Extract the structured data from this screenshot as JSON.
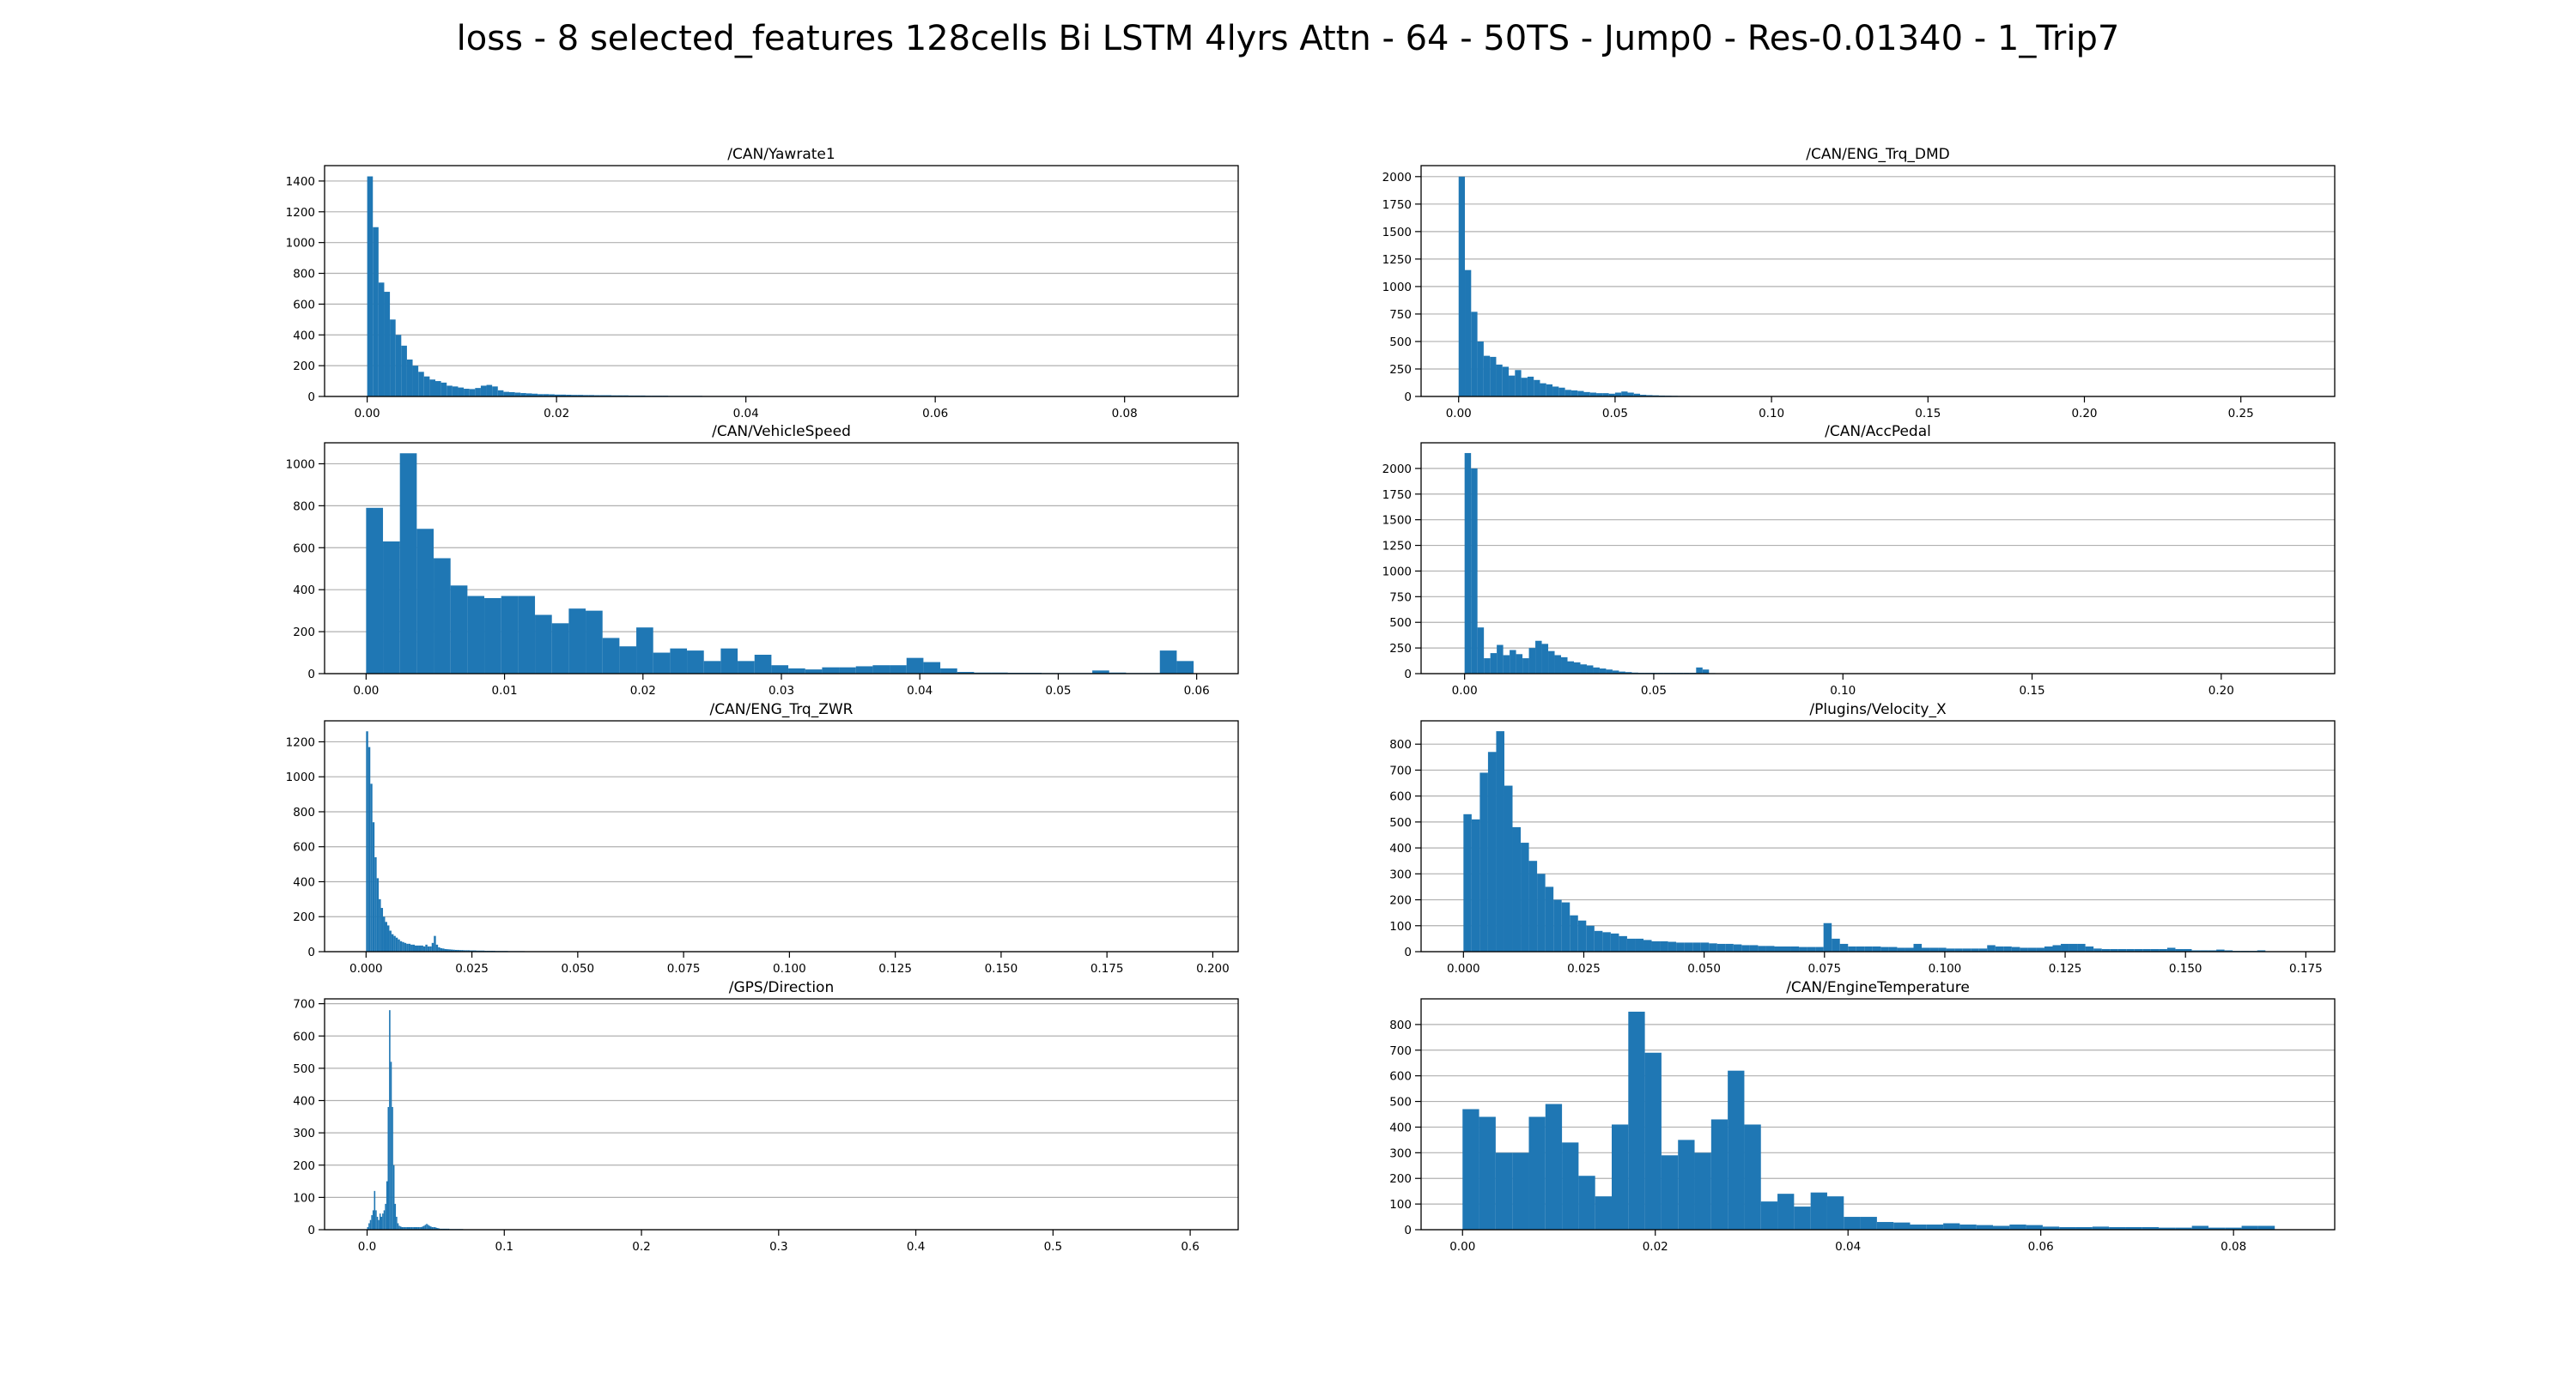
{
  "suptitle": "loss - 8 selected_features 128cells Bi LSTM 4lyrs Attn - 64 - 50TS - Jump0 - Res-0.01340 - 1_Trip7",
  "bar_color": "#1f77b4",
  "grid_color": "#b0b0b0",
  "chart_data": [
    {
      "type": "bar",
      "title": "/CAN/Yawrate1",
      "xlim": [
        -0.0045,
        0.092
      ],
      "ylim": [
        0,
        1500
      ],
      "grid": "y-only",
      "xticks": [
        0.0,
        0.02,
        0.04,
        0.06,
        0.08
      ],
      "xtick_labels": [
        "0.00",
        "0.02",
        "0.04",
        "0.06",
        "0.08"
      ],
      "yticks": [
        0,
        200,
        400,
        600,
        800,
        1000,
        1200,
        1400
      ],
      "ytick_labels": [
        "0",
        "200",
        "400",
        "600",
        "800",
        "1000",
        "1200",
        "1400"
      ],
      "x0": 0.0,
      "bin_width": 0.0006,
      "values": [
        1430,
        1100,
        740,
        680,
        500,
        400,
        330,
        240,
        200,
        160,
        130,
        110,
        100,
        90,
        70,
        65,
        58,
        50,
        48,
        55,
        70,
        75,
        65,
        40,
        30,
        28,
        25,
        22,
        20,
        18,
        15,
        15,
        14,
        12,
        12,
        11,
        10,
        10,
        9,
        9,
        8,
        8,
        8,
        7,
        7,
        7,
        6,
        6,
        6,
        5,
        5,
        5,
        5,
        4,
        4,
        4,
        4,
        4,
        4,
        3,
        3,
        3,
        3,
        3,
        3,
        3,
        3,
        3,
        3,
        2,
        2,
        2,
        2,
        2,
        2,
        2,
        2,
        2,
        2,
        2,
        2,
        2,
        2,
        2,
        2,
        2,
        2,
        2,
        2,
        1,
        1,
        1,
        1,
        1,
        1,
        1,
        1,
        1,
        1,
        1,
        1,
        1,
        1,
        1,
        1,
        1,
        1,
        1,
        1,
        1
      ]
    },
    {
      "type": "bar",
      "title": "/CAN/ENG_Trq_DMD",
      "xlim": [
        -0.012,
        0.28
      ],
      "ylim": [
        0,
        2100
      ],
      "grid": "y-only",
      "xticks": [
        0.0,
        0.05,
        0.1,
        0.15,
        0.2,
        0.25
      ],
      "xtick_labels": [
        "0.00",
        "0.05",
        "0.10",
        "0.15",
        "0.20",
        "0.25"
      ],
      "yticks": [
        0,
        250,
        500,
        750,
        1000,
        1250,
        1500,
        1750,
        2000
      ],
      "ytick_labels": [
        "0",
        "250",
        "500",
        "750",
        "1000",
        "1250",
        "1500",
        "1750",
        "2000"
      ],
      "x0": 0.0,
      "bin_width": 0.002,
      "values": [
        2000,
        1150,
        770,
        500,
        370,
        360,
        290,
        270,
        190,
        240,
        170,
        180,
        150,
        120,
        110,
        90,
        80,
        60,
        55,
        50,
        40,
        35,
        30,
        30,
        25,
        35,
        45,
        35,
        25,
        15,
        12,
        10,
        8,
        7,
        6,
        5,
        5,
        4,
        4,
        3,
        3,
        3,
        3,
        2,
        2,
        2,
        2,
        2,
        2,
        2,
        2,
        2,
        1,
        1,
        1,
        1,
        1,
        1,
        1,
        1
      ]
    },
    {
      "type": "bar",
      "title": "/CAN/VehicleSpeed",
      "xlim": [
        -0.003,
        0.063
      ],
      "ylim": [
        0,
        1100
      ],
      "grid": "y-only",
      "xticks": [
        0.0,
        0.01,
        0.02,
        0.03,
        0.04,
        0.05,
        0.06
      ],
      "xtick_labels": [
        "0.00",
        "0.01",
        "0.02",
        "0.03",
        "0.04",
        "0.05",
        "0.06"
      ],
      "yticks": [
        0,
        200,
        400,
        600,
        800,
        1000
      ],
      "ytick_labels": [
        "0",
        "200",
        "400",
        "600",
        "800",
        "1000"
      ],
      "x0": 0.0,
      "bin_width": 0.00122,
      "values": [
        790,
        630,
        1050,
        690,
        550,
        420,
        370,
        360,
        370,
        370,
        280,
        240,
        310,
        300,
        170,
        130,
        220,
        100,
        120,
        110,
        60,
        120,
        60,
        90,
        40,
        25,
        20,
        30,
        30,
        35,
        40,
        40,
        75,
        55,
        25,
        8,
        5,
        5,
        4,
        4,
        3,
        3,
        3,
        15,
        5,
        3,
        3,
        110,
        60
      ]
    },
    {
      "type": "bar",
      "title": "/CAN/AccPedal",
      "xlim": [
        -0.0115,
        0.23
      ],
      "ylim": [
        0,
        2250
      ],
      "grid": "y-only",
      "xticks": [
        0.0,
        0.05,
        0.1,
        0.15,
        0.2
      ],
      "xtick_labels": [
        "0.00",
        "0.05",
        "0.10",
        "0.15",
        "0.20"
      ],
      "yticks": [
        0,
        250,
        500,
        750,
        1000,
        1250,
        1500,
        1750,
        2000
      ],
      "ytick_labels": [
        "0",
        "250",
        "500",
        "750",
        "1000",
        "1250",
        "1500",
        "1750",
        "2000"
      ],
      "x0": 0.0,
      "bin_width": 0.0017,
      "values": [
        2150,
        2000,
        450,
        150,
        200,
        280,
        180,
        230,
        190,
        150,
        250,
        320,
        290,
        220,
        180,
        160,
        120,
        110,
        90,
        80,
        60,
        50,
        40,
        30,
        20,
        15,
        10,
        8,
        8,
        8,
        8,
        8,
        8,
        8,
        8,
        8,
        60,
        40,
        5,
        3,
        2,
        2,
        2,
        2,
        1,
        1,
        1,
        1,
        1,
        1
      ]
    },
    {
      "type": "bar",
      "title": "/CAN/ENG_Trq_ZWR",
      "xlim": [
        -0.0098,
        0.206
      ],
      "ylim": [
        0,
        1320
      ],
      "grid": "y-only",
      "xticks": [
        0.0,
        0.025,
        0.05,
        0.075,
        0.1,
        0.125,
        0.15,
        0.175,
        0.2
      ],
      "xtick_labels": [
        "0.000",
        "0.025",
        "0.050",
        "0.075",
        "0.100",
        "0.125",
        "0.150",
        "0.175",
        "0.200"
      ],
      "yticks": [
        0,
        200,
        400,
        600,
        800,
        1000,
        1200
      ],
      "ytick_labels": [
        "0",
        "200",
        "400",
        "600",
        "800",
        "1000",
        "1200"
      ],
      "x0": 0.0,
      "bin_width": 0.0005,
      "values": [
        1260,
        1170,
        960,
        740,
        540,
        420,
        300,
        250,
        200,
        170,
        150,
        120,
        100,
        90,
        80,
        70,
        60,
        55,
        50,
        45,
        45,
        40,
        40,
        35,
        35,
        35,
        35,
        30,
        40,
        30,
        30,
        50,
        90,
        40,
        25,
        20,
        18,
        15,
        14,
        13,
        12,
        11,
        10,
        10,
        9,
        9,
        8,
        8,
        8,
        7,
        7,
        7,
        6,
        6,
        6,
        6,
        5,
        5,
        5,
        5,
        5,
        4,
        4,
        4,
        4,
        4,
        4,
        3,
        3,
        3,
        3,
        3,
        3,
        3,
        3,
        2,
        2,
        2,
        2,
        2,
        2,
        2,
        2,
        2,
        2,
        2,
        2,
        2,
        2,
        2,
        2,
        2,
        2,
        1,
        1,
        1,
        1,
        1,
        1,
        1,
        1,
        1,
        1,
        1,
        1,
        1,
        1,
        1,
        1,
        1
      ]
    },
    {
      "type": "bar",
      "title": "/Plugins/Velocity_X",
      "xlim": [
        -0.0088,
        0.181
      ],
      "ylim": [
        0,
        890
      ],
      "grid": "y-only",
      "xticks": [
        0.0,
        0.025,
        0.05,
        0.075,
        0.1,
        0.125,
        0.15,
        0.175
      ],
      "xtick_labels": [
        "0.000",
        "0.025",
        "0.050",
        "0.075",
        "0.100",
        "0.125",
        "0.150",
        "0.175"
      ],
      "yticks": [
        0,
        100,
        200,
        300,
        400,
        500,
        600,
        700,
        800
      ],
      "ytick_labels": [
        "0",
        "100",
        "200",
        "300",
        "400",
        "500",
        "600",
        "700",
        "800"
      ],
      "x0": 0.0,
      "bin_width": 0.0017,
      "values": [
        530,
        510,
        690,
        770,
        850,
        640,
        480,
        420,
        350,
        300,
        250,
        200,
        190,
        140,
        120,
        100,
        80,
        75,
        70,
        60,
        50,
        50,
        45,
        40,
        40,
        38,
        35,
        35,
        35,
        35,
        32,
        30,
        30,
        28,
        25,
        25,
        22,
        22,
        20,
        20,
        20,
        18,
        18,
        18,
        110,
        50,
        30,
        20,
        20,
        20,
        20,
        18,
        18,
        15,
        15,
        30,
        15,
        15,
        15,
        12,
        12,
        12,
        12,
        12,
        25,
        20,
        20,
        18,
        15,
        15,
        15,
        20,
        25,
        30,
        30,
        30,
        20,
        12,
        10,
        10,
        10,
        10,
        10,
        10,
        10,
        10,
        15,
        10,
        10,
        5,
        5,
        5,
        8,
        5,
        3,
        3,
        3,
        5
      ]
    },
    {
      "type": "bar",
      "title": "/GPS/Direction",
      "xlim": [
        -0.031,
        0.635
      ],
      "ylim": [
        0,
        715
      ],
      "grid": "y-only",
      "xticks": [
        0.0,
        0.1,
        0.2,
        0.3,
        0.4,
        0.5,
        0.6
      ],
      "xtick_labels": [
        "0.0",
        "0.1",
        "0.2",
        "0.3",
        "0.4",
        "0.5",
        "0.6"
      ],
      "yticks": [
        0,
        100,
        200,
        300,
        400,
        500,
        600,
        700
      ],
      "ytick_labels": [
        "0",
        "100",
        "200",
        "300",
        "400",
        "500",
        "600",
        "700"
      ],
      "x0": 0.0,
      "bin_width": 0.001,
      "values": [
        8,
        20,
        30,
        45,
        60,
        120,
        60,
        40,
        30,
        50,
        40,
        50,
        60,
        80,
        150,
        380,
        680,
        520,
        380,
        200,
        80,
        40,
        20,
        12,
        10,
        8,
        8,
        8,
        8,
        8,
        8,
        8,
        8,
        8,
        8,
        8,
        8,
        8,
        8,
        8,
        10,
        12,
        15,
        18,
        15,
        12,
        10,
        8,
        8,
        8,
        6,
        5,
        4,
        3,
        3,
        3,
        3,
        3,
        3,
        3,
        2,
        2,
        2,
        2,
        2,
        2,
        2,
        2,
        2,
        2
      ]
    },
    {
      "type": "bar",
      "title": "/CAN/EngineTemperature",
      "xlim": [
        -0.0043,
        0.0905
      ],
      "ylim": [
        0,
        900
      ],
      "grid": "y-only",
      "xticks": [
        0.0,
        0.02,
        0.04,
        0.06,
        0.08
      ],
      "xtick_labels": [
        "0.00",
        "0.02",
        "0.04",
        "0.06",
        "0.08"
      ],
      "yticks": [
        0,
        100,
        200,
        300,
        400,
        500,
        600,
        700,
        800
      ],
      "ytick_labels": [
        "0",
        "100",
        "200",
        "300",
        "400",
        "500",
        "600",
        "700",
        "800"
      ],
      "x0": 0.0,
      "bin_width": 0.00172,
      "values": [
        470,
        440,
        300,
        300,
        440,
        490,
        340,
        210,
        130,
        410,
        850,
        690,
        290,
        350,
        300,
        430,
        620,
        410,
        110,
        140,
        90,
        145,
        130,
        50,
        50,
        30,
        28,
        20,
        20,
        25,
        20,
        18,
        15,
        20,
        18,
        12,
        10,
        10,
        12,
        10,
        10,
        10,
        8,
        8,
        15,
        8,
        8,
        15,
        15
      ]
    }
  ]
}
